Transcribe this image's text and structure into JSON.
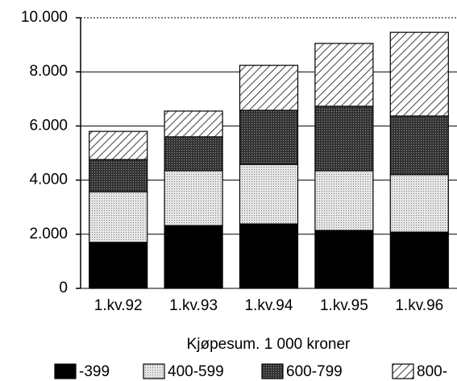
{
  "chart_data": {
    "type": "stacked_bar",
    "categories": [
      "1.kv.92",
      "1.kv.93",
      "1.kv.94",
      "1.kv.95",
      "1.kv.96"
    ],
    "legend_title": "Kjøpesum. 1 000 kroner",
    "series": [
      {
        "name": "-399",
        "color": "#000000",
        "pattern": "solid",
        "values": [
          1700,
          2320,
          2380,
          2140,
          2080
        ]
      },
      {
        "name": "400-599",
        "color": "#d8d8d8",
        "pattern": "dots",
        "values": [
          1870,
          2030,
          2200,
          2210,
          2120
        ]
      },
      {
        "name": "600-799",
        "color": "#3a3a3a",
        "pattern": "dots",
        "values": [
          1190,
          1250,
          2000,
          2380,
          2170
        ]
      },
      {
        "name": "800-",
        "color": "#ffffff",
        "pattern": "hatch",
        "values": [
          1040,
          950,
          1660,
          2320,
          3090
        ]
      }
    ],
    "ylim": [
      0,
      10000
    ],
    "yticks": [
      0,
      {
        "value": 2000,
        "label": "2.000"
      },
      {
        "value": 4000,
        "label": "4.000"
      },
      {
        "value": 6000,
        "label": "6.000"
      },
      {
        "value": 8000,
        "label": "8.000"
      },
      {
        "value": 10000,
        "label": "10.000"
      }
    ],
    "grid": true
  }
}
